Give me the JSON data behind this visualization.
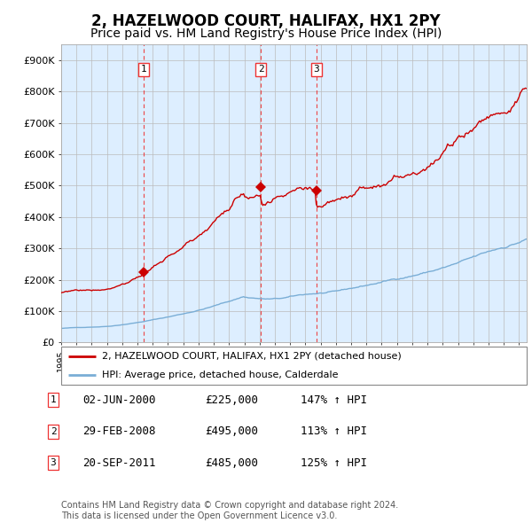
{
  "title": "2, HAZELWOOD COURT, HALIFAX, HX1 2PY",
  "subtitle": "Price paid vs. HM Land Registry's House Price Index (HPI)",
  "title_fontsize": 12,
  "subtitle_fontsize": 10,
  "ylim": [
    0,
    950000
  ],
  "yticks": [
    0,
    100000,
    200000,
    300000,
    400000,
    500000,
    600000,
    700000,
    800000,
    900000
  ],
  "ytick_labels": [
    "£0",
    "£100K",
    "£200K",
    "£300K",
    "£400K",
    "£500K",
    "£600K",
    "£700K",
    "£800K",
    "£900K"
  ],
  "xlim_start": 1995,
  "xlim_end": 2025.5,
  "sale_years": [
    2000.417,
    2008.083,
    2011.722
  ],
  "sale_prices": [
    225000,
    495000,
    485000
  ],
  "sale_labels": [
    "1",
    "2",
    "3"
  ],
  "legend_line1": "2, HAZELWOOD COURT, HALIFAX, HX1 2PY (detached house)",
  "legend_line2": "HPI: Average price, detached house, Calderdale",
  "table_rows": [
    [
      "1",
      "02-JUN-2000",
      "£225,000",
      "147% ↑ HPI"
    ],
    [
      "2",
      "29-FEB-2008",
      "£495,000",
      "113% ↑ HPI"
    ],
    [
      "3",
      "20-SEP-2011",
      "£485,000",
      "125% ↑ HPI"
    ]
  ],
  "footnote": "Contains HM Land Registry data © Crown copyright and database right 2024.\nThis data is licensed under the Open Government Licence v3.0.",
  "red_color": "#cc0000",
  "blue_color": "#7aaed6",
  "vline_color": "#ee3333",
  "chart_bg": "#ddeeff",
  "grid_color": "#bbbbbb"
}
